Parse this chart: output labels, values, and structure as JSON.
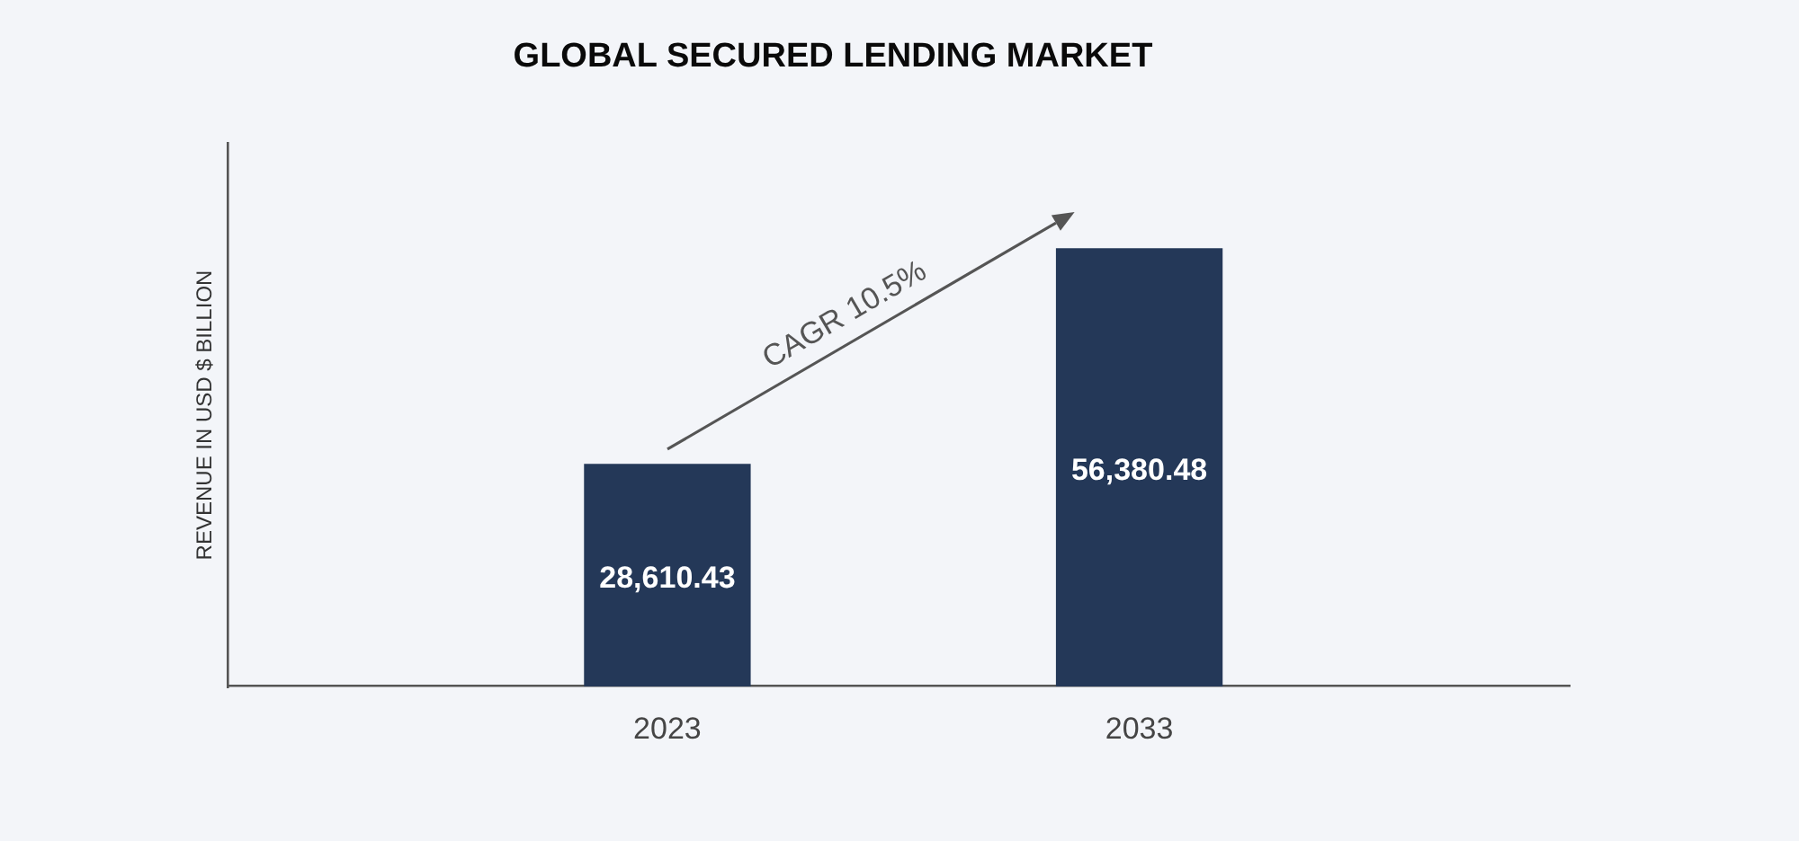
{
  "chart_data": {
    "type": "bar",
    "title": "GLOBAL SECURED LENDING MARKET",
    "ylabel": "REVENUE IN USD $ BILLION",
    "categories": [
      "2023",
      "2033"
    ],
    "values": [
      28610.43,
      56380.48
    ],
    "value_labels": [
      "28,610.43",
      "56,380.48"
    ],
    "color": "#243858",
    "tick_labels": "x",
    "annotations": [
      "CAGR 10.5%"
    ]
  }
}
